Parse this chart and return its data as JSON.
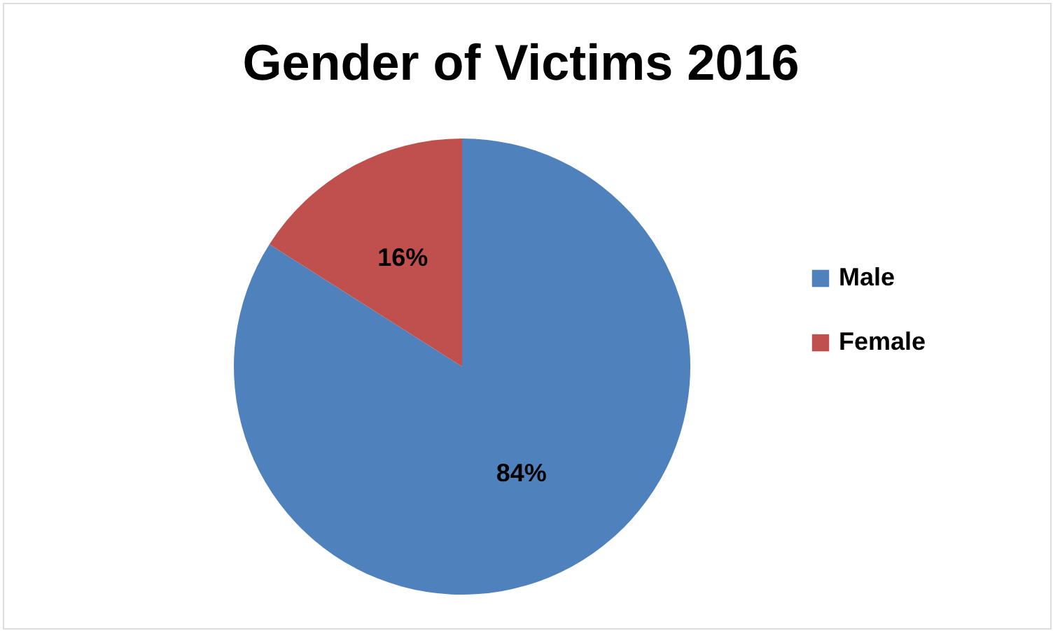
{
  "chart_data": {
    "type": "pie",
    "title": "Gender of Victims 2016",
    "categories": [
      "Male",
      "Female"
    ],
    "values": [
      84,
      16
    ],
    "colors": [
      "#4f81bd",
      "#c0504d"
    ],
    "value_labels": [
      "84%",
      "16%"
    ],
    "legend": "right"
  }
}
